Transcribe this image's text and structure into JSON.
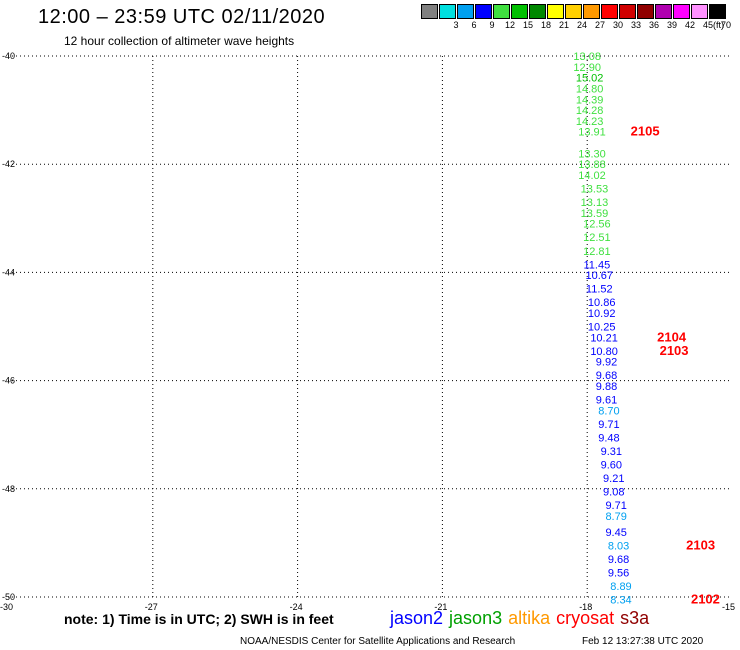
{
  "header": {
    "title": "12:00 – 23:59 UTC 02/11/2020",
    "subtitle": "12 hour collection of altimeter wave heights"
  },
  "color_legend": {
    "unit": "(ft)",
    "bins": [
      {
        "label": "",
        "color": "#808080"
      },
      {
        "label": "3",
        "color": "#00e0e0"
      },
      {
        "label": "6",
        "color": "#00a0f0"
      },
      {
        "label": "9",
        "color": "#0000ff"
      },
      {
        "label": "12",
        "color": "#40e040"
      },
      {
        "label": "15",
        "color": "#00c000"
      },
      {
        "label": "18",
        "color": "#008800"
      },
      {
        "label": "21",
        "color": "#ffff00"
      },
      {
        "label": "24",
        "color": "#ffd000"
      },
      {
        "label": "27",
        "color": "#ff9900"
      },
      {
        "label": "30",
        "color": "#ff0000"
      },
      {
        "label": "33",
        "color": "#d00000"
      },
      {
        "label": "36",
        "color": "#900000"
      },
      {
        "label": "39",
        "color": "#b000b0"
      },
      {
        "label": "42",
        "color": "#ff00ff"
      },
      {
        "label": "45",
        "color": "#ff90ff"
      },
      {
        "label": "70",
        "color": "#000000"
      }
    ]
  },
  "chart_data": {
    "type": "scatter",
    "xlim": [
      -30,
      -15
    ],
    "ylim": [
      -50,
      -40
    ],
    "x_ticks": [
      "-30",
      "-27",
      "-24",
      "-21",
      "-18",
      "-15"
    ],
    "y_ticks": [
      "-40",
      "-42",
      "-44",
      "-46",
      "-48",
      "-50"
    ],
    "grid": true,
    "points": [
      {
        "lon": -18.0,
        "lat": -40.0,
        "swh": "13.08",
        "color": "#40e040"
      },
      {
        "lon": -18.0,
        "lat": -40.2,
        "swh": "12.90",
        "color": "#40e040"
      },
      {
        "lon": -17.95,
        "lat": -40.4,
        "swh": "15.02",
        "color": "#00c000"
      },
      {
        "lon": -17.95,
        "lat": -40.6,
        "swh": "14.80",
        "color": "#40e040"
      },
      {
        "lon": -17.95,
        "lat": -40.8,
        "swh": "14.39",
        "color": "#40e040"
      },
      {
        "lon": -17.95,
        "lat": -41.0,
        "swh": "14.28",
        "color": "#40e040"
      },
      {
        "lon": -17.95,
        "lat": -41.2,
        "swh": "14.23",
        "color": "#40e040"
      },
      {
        "lon": -17.9,
        "lat": -41.4,
        "swh": "13.91",
        "color": "#40e040"
      },
      {
        "lon": -17.9,
        "lat": -41.8,
        "swh": "13.30",
        "color": "#40e040"
      },
      {
        "lon": -17.9,
        "lat": -42.0,
        "swh": "13.88",
        "color": "#40e040"
      },
      {
        "lon": -17.9,
        "lat": -42.2,
        "swh": "14.02",
        "color": "#40e040"
      },
      {
        "lon": -17.85,
        "lat": -42.45,
        "swh": "13.53",
        "color": "#40e040"
      },
      {
        "lon": -17.85,
        "lat": -42.7,
        "swh": "13.13",
        "color": "#40e040"
      },
      {
        "lon": -17.85,
        "lat": -42.9,
        "swh": "13.59",
        "color": "#40e040"
      },
      {
        "lon": -17.8,
        "lat": -43.1,
        "swh": "12.56",
        "color": "#40e040"
      },
      {
        "lon": -17.8,
        "lat": -43.35,
        "swh": "12.51",
        "color": "#40e040"
      },
      {
        "lon": -17.8,
        "lat": -43.6,
        "swh": "12.81",
        "color": "#40e040"
      },
      {
        "lon": -17.8,
        "lat": -43.85,
        "swh": "11.45",
        "color": "#0000ff"
      },
      {
        "lon": -17.75,
        "lat": -44.05,
        "swh": "10.67",
        "color": "#0000ff"
      },
      {
        "lon": -17.75,
        "lat": -44.3,
        "swh": "11.52",
        "color": "#0000ff"
      },
      {
        "lon": -17.7,
        "lat": -44.55,
        "swh": "10.86",
        "color": "#0000ff"
      },
      {
        "lon": -17.7,
        "lat": -44.75,
        "swh": "10.92",
        "color": "#0000ff"
      },
      {
        "lon": -17.7,
        "lat": -45.0,
        "swh": "10.25",
        "color": "#0000ff"
      },
      {
        "lon": -17.65,
        "lat": -45.2,
        "swh": "10.21",
        "color": "#0000ff"
      },
      {
        "lon": -17.65,
        "lat": -45.45,
        "swh": "10.80",
        "color": "#0000ff"
      },
      {
        "lon": -17.6,
        "lat": -45.65,
        "swh": "9.92",
        "color": "#0000ff"
      },
      {
        "lon": -17.6,
        "lat": -45.9,
        "swh": "9.68",
        "color": "#0000ff"
      },
      {
        "lon": -17.6,
        "lat": -46.1,
        "swh": "9.88",
        "color": "#0000ff"
      },
      {
        "lon": -17.6,
        "lat": -46.35,
        "swh": "9.61",
        "color": "#0000ff"
      },
      {
        "lon": -17.55,
        "lat": -46.55,
        "swh": "8.70",
        "color": "#00a0f0"
      },
      {
        "lon": -17.55,
        "lat": -46.8,
        "swh": "9.71",
        "color": "#0000ff"
      },
      {
        "lon": -17.55,
        "lat": -47.05,
        "swh": "9.48",
        "color": "#0000ff"
      },
      {
        "lon": -17.5,
        "lat": -47.3,
        "swh": "9.31",
        "color": "#0000ff"
      },
      {
        "lon": -17.5,
        "lat": -47.55,
        "swh": "9.60",
        "color": "#0000ff"
      },
      {
        "lon": -17.45,
        "lat": -47.8,
        "swh": "9.21",
        "color": "#0000ff"
      },
      {
        "lon": -17.45,
        "lat": -48.05,
        "swh": "9.08",
        "color": "#0000ff"
      },
      {
        "lon": -17.4,
        "lat": -48.3,
        "swh": "9.71",
        "color": "#0000ff"
      },
      {
        "lon": -17.4,
        "lat": -48.5,
        "swh": "8.79",
        "color": "#00a0f0"
      },
      {
        "lon": -17.4,
        "lat": -48.8,
        "swh": "9.45",
        "color": "#0000ff"
      },
      {
        "lon": -17.35,
        "lat": -49.05,
        "swh": "8.03",
        "color": "#00a0f0"
      },
      {
        "lon": -17.35,
        "lat": -49.3,
        "swh": "9.68",
        "color": "#0000ff"
      },
      {
        "lon": -17.35,
        "lat": -49.55,
        "swh": "9.56",
        "color": "#0000ff"
      },
      {
        "lon": -17.3,
        "lat": -49.8,
        "swh": "8.89",
        "color": "#00a0f0"
      },
      {
        "lon": -17.3,
        "lat": -50.05,
        "swh": "8.34",
        "color": "#00a0f0"
      }
    ],
    "time_labels": [
      {
        "text": "2105",
        "lon": -17.1,
        "lat": -41.4
      },
      {
        "text": "2104",
        "lon": -16.55,
        "lat": -45.2
      },
      {
        "text": "2103",
        "lon": -16.5,
        "lat": -45.45
      },
      {
        "text": "2103",
        "lon": -15.95,
        "lat": -49.05
      },
      {
        "text": "2102",
        "lon": -15.85,
        "lat": -50.05
      }
    ]
  },
  "footer": {
    "note": "note:  1) Time is in UTC;  2) SWH is in feet",
    "satellites": [
      {
        "name": "jason2",
        "color": "#0000ff"
      },
      {
        "name": "jason3",
        "color": "#00a000"
      },
      {
        "name": "altika",
        "color": "#ff9900"
      },
      {
        "name": "cryosat",
        "color": "#ff0000"
      },
      {
        "name": "s3a",
        "color": "#900000"
      }
    ],
    "credit": "NOAA/NESDIS Center for Satellite Applications and Research",
    "timestamp": "Feb 12 13:27:38 UTC 2020"
  }
}
